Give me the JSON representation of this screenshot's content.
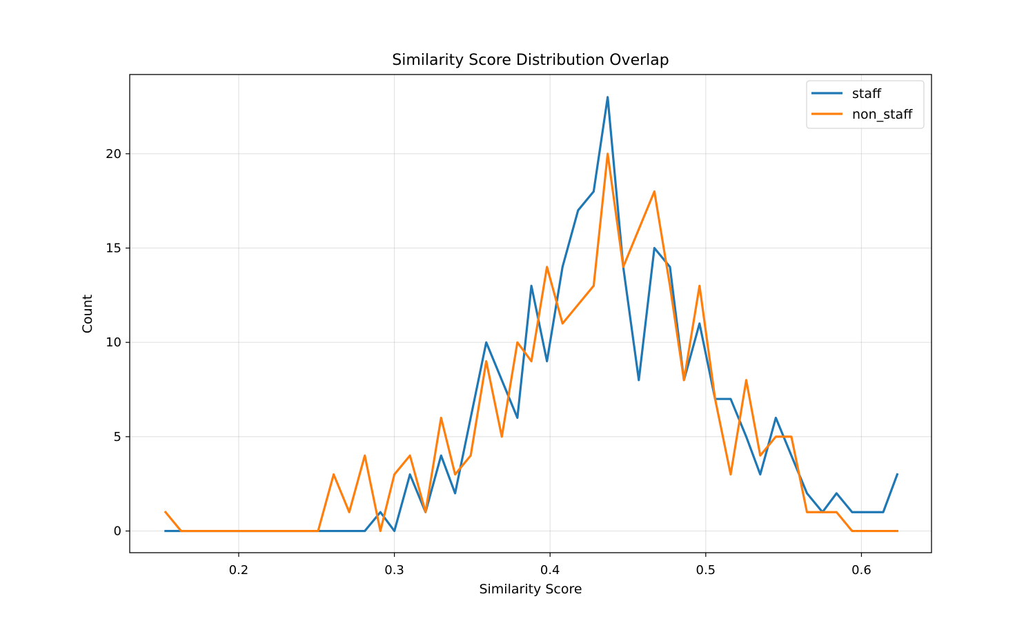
{
  "chart_data": {
    "type": "line",
    "title": "Similarity Score Distribution Overlap",
    "xlabel": "Similarity Score",
    "ylabel": "Count",
    "xlim": [
      0.13,
      0.645
    ],
    "ylim": [
      -1.15,
      24.2
    ],
    "xticks": [
      {
        "value": 0.2,
        "label": "0.2"
      },
      {
        "value": 0.3,
        "label": "0.3"
      },
      {
        "value": 0.4,
        "label": "0.4"
      },
      {
        "value": 0.5,
        "label": "0.5"
      },
      {
        "value": 0.6,
        "label": "0.6"
      }
    ],
    "yticks": [
      {
        "value": 0,
        "label": "0"
      },
      {
        "value": 5,
        "label": "5"
      },
      {
        "value": 10,
        "label": "10"
      },
      {
        "value": 15,
        "label": "15"
      },
      {
        "value": 20,
        "label": "20"
      }
    ],
    "grid": true,
    "legend_position": "top-right",
    "x": [
      0.153,
      0.163,
      0.173,
      0.183,
      0.193,
      0.202,
      0.212,
      0.222,
      0.232,
      0.242,
      0.251,
      0.261,
      0.271,
      0.281,
      0.291,
      0.3,
      0.31,
      0.32,
      0.33,
      0.339,
      0.349,
      0.359,
      0.369,
      0.379,
      0.388,
      0.398,
      0.408,
      0.418,
      0.428,
      0.437,
      0.447,
      0.457,
      0.467,
      0.477,
      0.486,
      0.496,
      0.506,
      0.516,
      0.526,
      0.535,
      0.545,
      0.555,
      0.565,
      0.575,
      0.584,
      0.594,
      0.604,
      0.614,
      0.623
    ],
    "series": [
      {
        "name": "staff",
        "color": "#1f77b4",
        "values": [
          0,
          0,
          0,
          0,
          0,
          0,
          0,
          0,
          0,
          0,
          0,
          0,
          0,
          0,
          1,
          0,
          3,
          1,
          4,
          2,
          6,
          10,
          8,
          6,
          13,
          9,
          14,
          17,
          18,
          23,
          14,
          8,
          15,
          14,
          8,
          11,
          7,
          7,
          5,
          3,
          6,
          4,
          2,
          1,
          2,
          1,
          1,
          1,
          3
        ]
      },
      {
        "name": "non_staff",
        "color": "#ff7f0e",
        "values": [
          1,
          0,
          0,
          0,
          0,
          0,
          0,
          0,
          0,
          0,
          0,
          3,
          1,
          4,
          0,
          3,
          4,
          1,
          6,
          3,
          4,
          9,
          5,
          10,
          9,
          14,
          11,
          12,
          13,
          20,
          14,
          16,
          18,
          13,
          8,
          13,
          7,
          3,
          8,
          4,
          5,
          5,
          1,
          1,
          1,
          0,
          0,
          0,
          0
        ]
      }
    ]
  }
}
